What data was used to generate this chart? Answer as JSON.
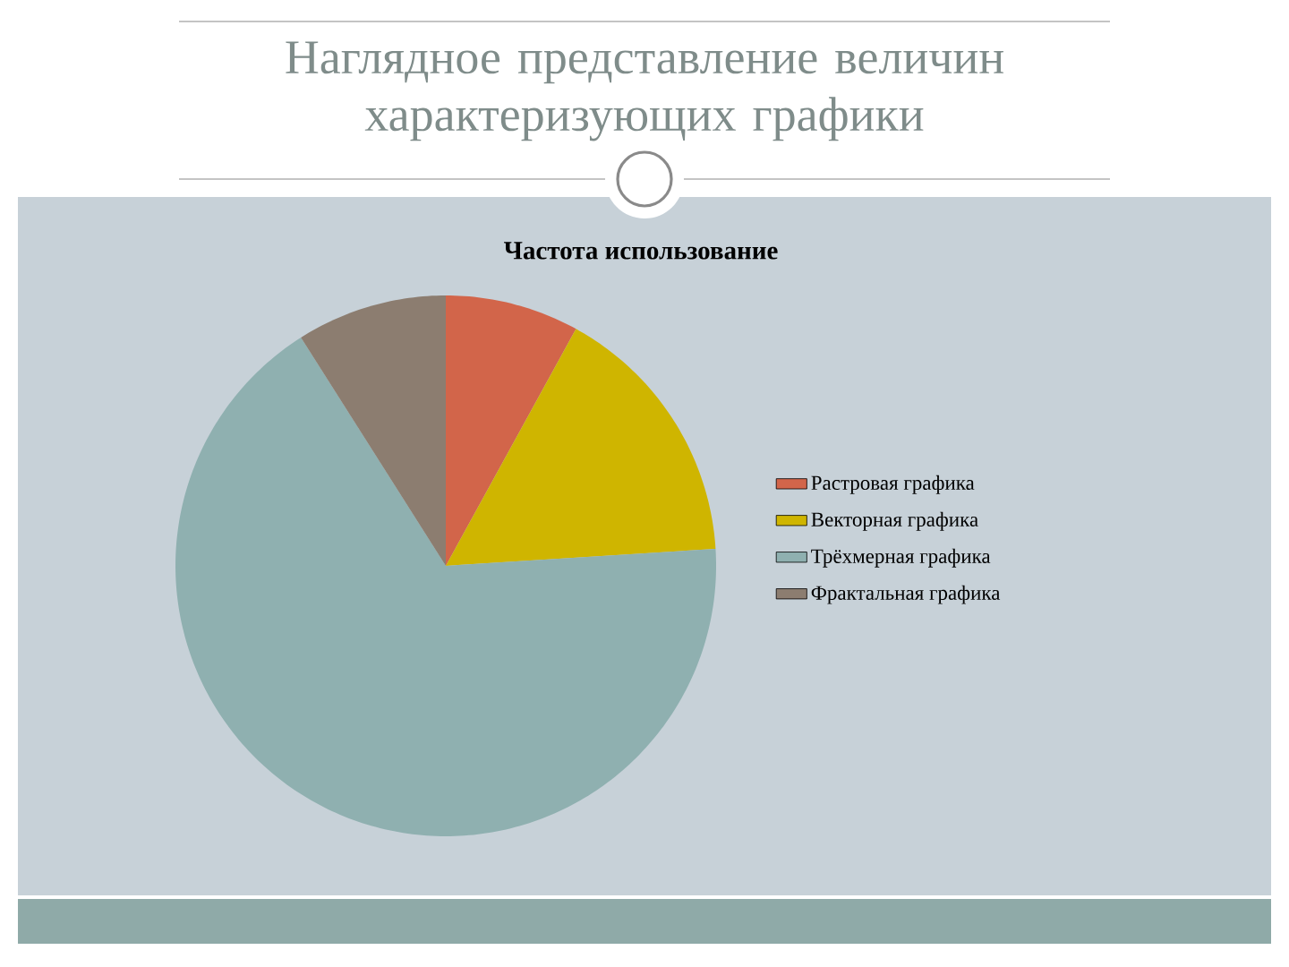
{
  "chart_data": {
    "type": "pie",
    "title": "Наглядное представление величин характеризующих графики",
    "subtitle": "Частота использование",
    "categories": [
      "Растровая графика",
      "Векторная графика",
      "Трёхмерная графика",
      "Фрактальная графика"
    ],
    "values": [
      8,
      16,
      67,
      9
    ],
    "colors": [
      "#d2654a",
      "#cfb500",
      "#8fb0b0",
      "#8c7d70"
    ],
    "legend": "right"
  }
}
